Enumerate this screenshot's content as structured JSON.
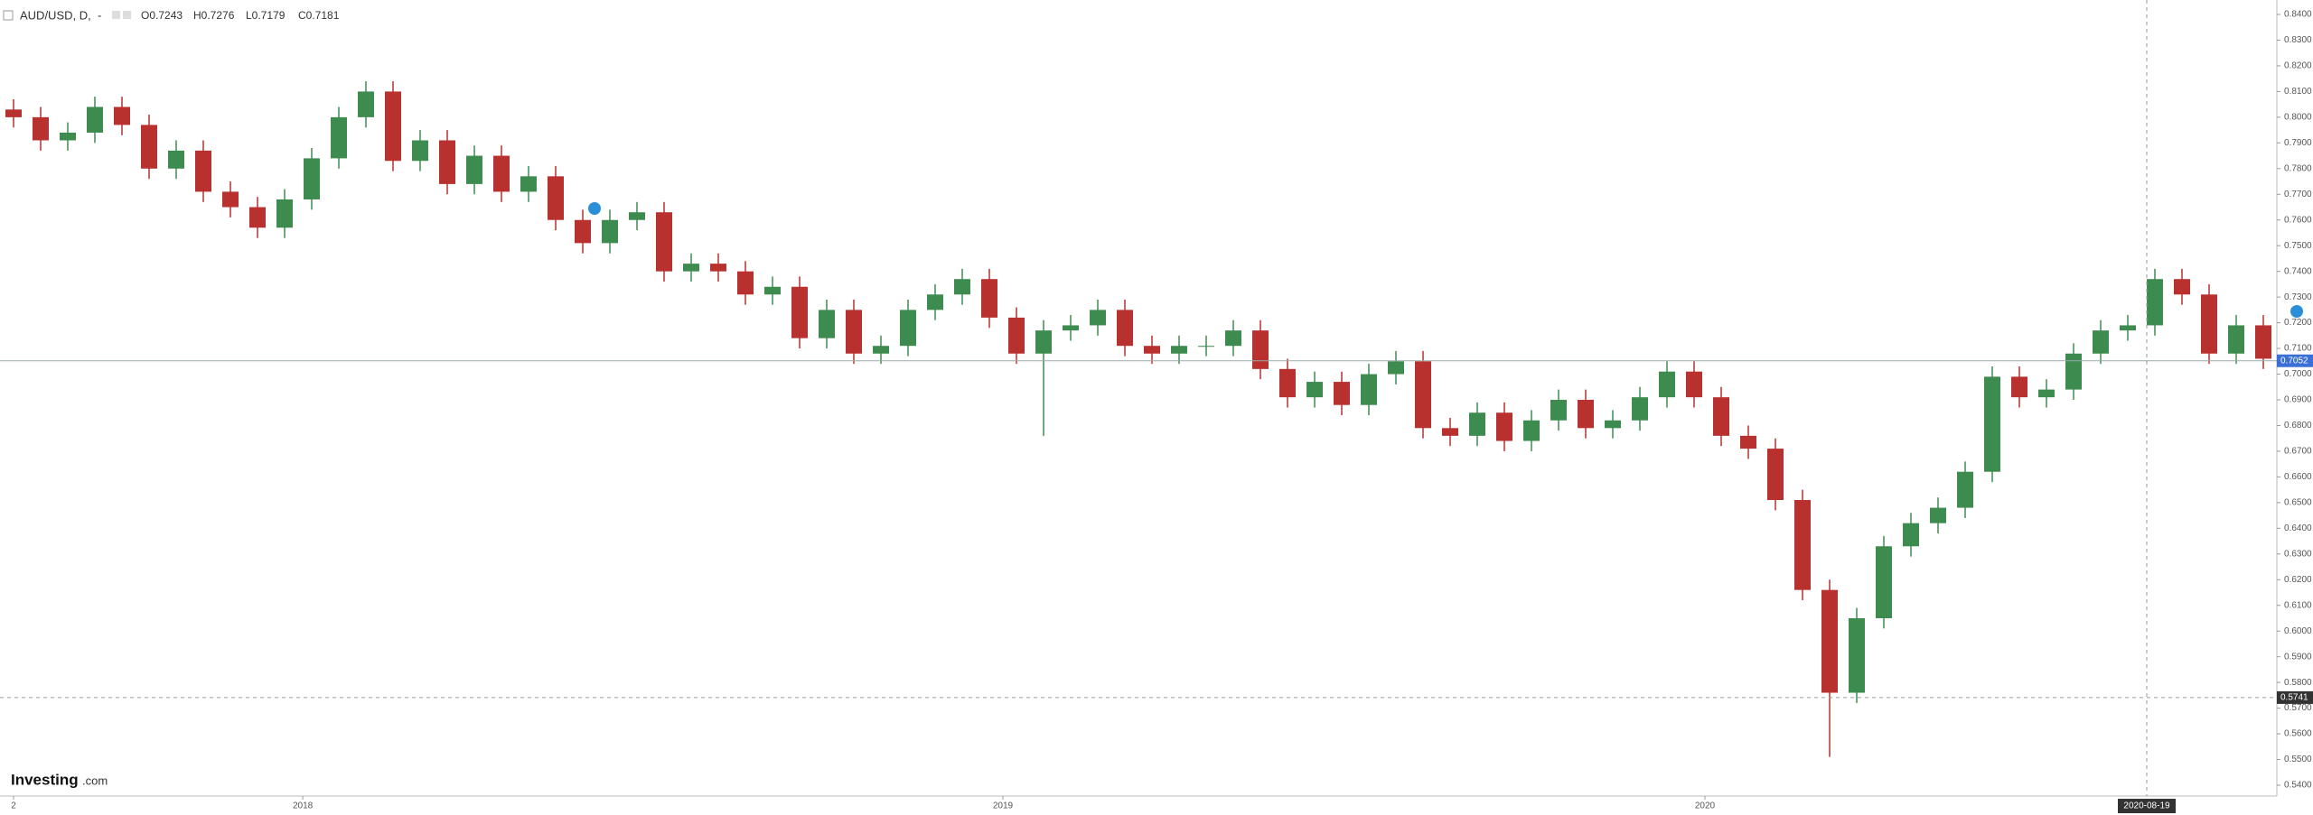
{
  "chart_data": {
    "type": "candlestick",
    "title": "AUD/USD, D,",
    "title_suffix": "-",
    "ohlc_legend": [
      "O0.7243",
      "H0.7276",
      "L0.7179",
      "C0.7181"
    ],
    "logo": {
      "brand": "Investing",
      "domain": ".com"
    },
    "up_color": "#3d8b4f",
    "down_color": "#b8312f",
    "open": [
      0.803,
      0.8,
      0.791,
      0.794,
      0.804,
      0.797,
      0.78,
      0.787,
      0.771,
      0.765,
      0.757,
      0.768,
      0.784,
      0.8,
      0.81,
      0.783,
      0.791,
      0.774,
      0.785,
      0.771,
      0.777,
      0.76,
      0.751,
      0.76,
      0.763,
      0.74,
      0.743,
      0.74,
      0.731,
      0.734,
      0.714,
      0.725,
      0.708,
      0.711,
      0.725,
      0.731,
      0.737,
      0.722,
      0.708,
      0.717,
      0.719,
      0.725,
      0.711,
      0.708,
      0.711,
      0.711,
      0.717,
      0.702,
      0.691,
      0.697,
      0.688,
      0.7,
      0.705,
      0.679,
      0.676,
      0.685,
      0.674,
      0.682,
      0.69,
      0.679,
      0.682,
      0.691,
      0.701,
      0.691,
      0.676,
      0.671,
      0.651,
      0.616,
      0.576,
      0.605,
      0.633,
      0.642,
      0.648,
      0.662,
      0.699,
      0.691,
      0.694,
      0.708,
      0.717,
      0.719,
      0.737,
      0.731,
      0.708,
      0.719
    ],
    "high": [
      0.807,
      0.804,
      0.798,
      0.808,
      0.808,
      0.801,
      0.791,
      0.791,
      0.775,
      0.769,
      0.772,
      0.788,
      0.804,
      0.814,
      0.814,
      0.795,
      0.795,
      0.789,
      0.789,
      0.781,
      0.781,
      0.764,
      0.764,
      0.767,
      0.767,
      0.747,
      0.747,
      0.744,
      0.738,
      0.738,
      0.729,
      0.729,
      0.715,
      0.729,
      0.735,
      0.741,
      0.741,
      0.726,
      0.721,
      0.723,
      0.729,
      0.729,
      0.715,
      0.715,
      0.715,
      0.721,
      0.721,
      0.706,
      0.701,
      0.701,
      0.704,
      0.709,
      0.709,
      0.683,
      0.689,
      0.689,
      0.686,
      0.694,
      0.694,
      0.686,
      0.695,
      0.705,
      0.705,
      0.695,
      0.68,
      0.675,
      0.655,
      0.62,
      0.609,
      0.637,
      0.646,
      0.652,
      0.666,
      0.703,
      0.703,
      0.698,
      0.712,
      0.721,
      0.723,
      0.741,
      0.741,
      0.735,
      0.723,
      0.723
    ],
    "low": [
      0.796,
      0.787,
      0.787,
      0.79,
      0.793,
      0.776,
      0.776,
      0.767,
      0.761,
      0.753,
      0.753,
      0.764,
      0.78,
      0.796,
      0.779,
      0.779,
      0.77,
      0.77,
      0.767,
      0.767,
      0.756,
      0.747,
      0.747,
      0.756,
      0.736,
      0.736,
      0.736,
      0.727,
      0.727,
      0.71,
      0.71,
      0.704,
      0.704,
      0.707,
      0.721,
      0.727,
      0.718,
      0.704,
      0.676,
      0.713,
      0.715,
      0.707,
      0.704,
      0.704,
      0.707,
      0.707,
      0.698,
      0.687,
      0.687,
      0.684,
      0.684,
      0.696,
      0.675,
      0.672,
      0.672,
      0.67,
      0.67,
      0.678,
      0.675,
      0.675,
      0.678,
      0.687,
      0.687,
      0.672,
      0.667,
      0.647,
      0.612,
      0.551,
      0.572,
      0.601,
      0.629,
      0.638,
      0.644,
      0.658,
      0.687,
      0.687,
      0.69,
      0.704,
      0.713,
      0.715,
      0.727,
      0.704,
      0.704,
      0.702
    ],
    "close": [
      0.8,
      0.791,
      0.794,
      0.804,
      0.797,
      0.78,
      0.787,
      0.771,
      0.765,
      0.757,
      0.768,
      0.784,
      0.8,
      0.81,
      0.783,
      0.791,
      0.774,
      0.785,
      0.771,
      0.777,
      0.76,
      0.751,
      0.76,
      0.763,
      0.74,
      0.743,
      0.74,
      0.731,
      0.734,
      0.714,
      0.725,
      0.708,
      0.711,
      0.725,
      0.731,
      0.737,
      0.722,
      0.708,
      0.717,
      0.719,
      0.725,
      0.711,
      0.708,
      0.711,
      0.711,
      0.717,
      0.702,
      0.691,
      0.697,
      0.688,
      0.7,
      0.705,
      0.679,
      0.676,
      0.685,
      0.674,
      0.682,
      0.69,
      0.679,
      0.682,
      0.691,
      0.701,
      0.691,
      0.676,
      0.671,
      0.651,
      0.616,
      0.576,
      0.605,
      0.633,
      0.642,
      0.648,
      0.662,
      0.699,
      0.691,
      0.694,
      0.708,
      0.717,
      0.719,
      0.737,
      0.731,
      0.708,
      0.719,
      0.706
    ],
    "xlim": [
      -0.5,
      83.5
    ],
    "xticks": [
      {
        "value": 0,
        "label": "2"
      },
      {
        "value": 10.67,
        "label": "2018"
      },
      {
        "value": 36.5,
        "label": "2019"
      },
      {
        "value": 62.4,
        "label": "2020"
      }
    ],
    "ylim": [
      0.54,
      0.84
    ],
    "yticks": [
      {
        "value": 0.84,
        "label": "0.8400"
      },
      {
        "value": 0.83,
        "label": "0.8300"
      },
      {
        "value": 0.82,
        "label": "0.8200"
      },
      {
        "value": 0.81,
        "label": "0.8100"
      },
      {
        "value": 0.8,
        "label": "0.8000"
      },
      {
        "value": 0.79,
        "label": "0.7900"
      },
      {
        "value": 0.78,
        "label": "0.7800"
      },
      {
        "value": 0.77,
        "label": "0.7700"
      },
      {
        "value": 0.76,
        "label": "0.7600"
      },
      {
        "value": 0.75,
        "label": "0.7500"
      },
      {
        "value": 0.74,
        "label": "0.7400"
      },
      {
        "value": 0.73,
        "label": "0.7300"
      },
      {
        "value": 0.72,
        "label": "0.7200"
      },
      {
        "value": 0.71,
        "label": "0.7100"
      },
      {
        "value": 0.7,
        "label": "0.7000"
      },
      {
        "value": 0.69,
        "label": "0.6900"
      },
      {
        "value": 0.68,
        "label": "0.6800"
      },
      {
        "value": 0.67,
        "label": "0.6700"
      },
      {
        "value": 0.66,
        "label": "0.6600"
      },
      {
        "value": 0.65,
        "label": "0.6500"
      },
      {
        "value": 0.64,
        "label": "0.6400"
      },
      {
        "value": 0.63,
        "label": "0.6300"
      },
      {
        "value": 0.62,
        "label": "0.6200"
      },
      {
        "value": 0.61,
        "label": "0.6100"
      },
      {
        "value": 0.6,
        "label": "0.6000"
      },
      {
        "value": 0.59,
        "label": "0.5900"
      },
      {
        "value": 0.58,
        "label": "0.5800"
      },
      {
        "value": 0.57,
        "label": "0.5700"
      },
      {
        "value": 0.56,
        "label": "0.5600"
      },
      {
        "value": 0.55,
        "label": "0.5500"
      },
      {
        "value": 0.54,
        "label": "0.5400"
      }
    ],
    "current_price": {
      "value": 0.7052,
      "label": "0.7052"
    },
    "crosshair": {
      "x": {
        "value": 78.7,
        "label": "2020-08-19"
      },
      "y": {
        "value": 0.5741,
        "label": "0.5741"
      }
    }
  }
}
